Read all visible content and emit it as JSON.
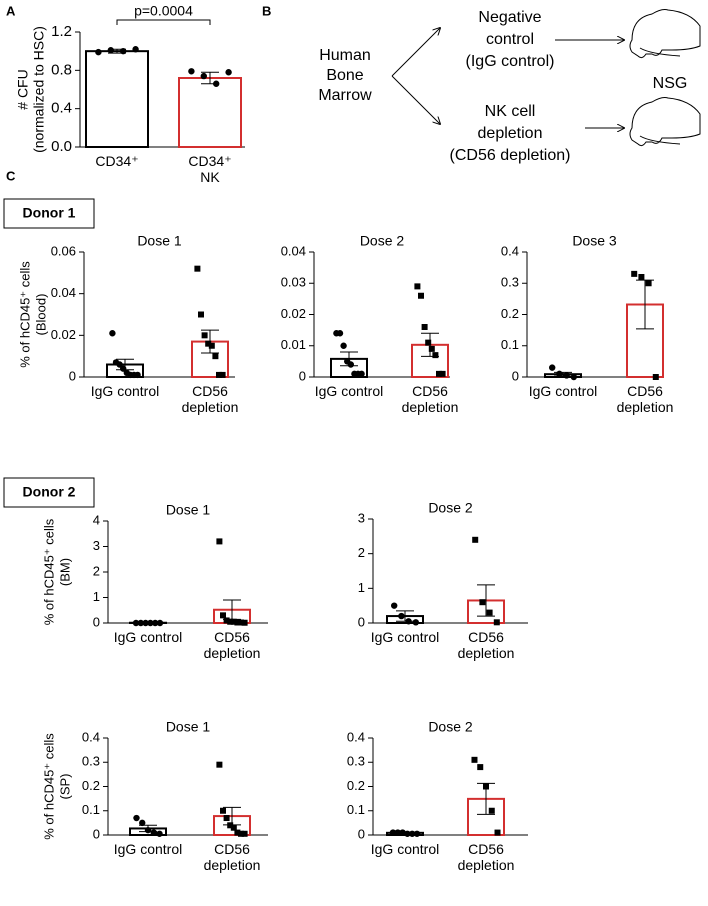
{
  "panels": [
    "A",
    "B",
    "C"
  ],
  "sections": [
    "Donor 1",
    "Donor 2"
  ],
  "diagram": {
    "source": [
      "Human",
      "Bone",
      "Marrow"
    ],
    "arm1": [
      "Negative",
      "control",
      "(IgG control)"
    ],
    "arm2": [
      "NK cell",
      "depletion",
      "(CD56 depletion)"
    ],
    "model": "NSG"
  },
  "chart_data": [
    {
      "type": "bar",
      "annotation": "p=0.0004",
      "ylabel": [
        "# CFU",
        "(normalized to HSC)"
      ],
      "categories": [
        "CD34⁺",
        "CD34⁺ NK"
      ],
      "values": [
        1.0,
        0.72
      ],
      "errors": [
        0.02,
        0.06
      ],
      "points": [
        [
          0.99,
          1.01,
          1.0,
          1.02
        ],
        [
          0.79,
          0.74,
          0.66,
          0.78
        ]
      ],
      "markers": [
        "circle",
        "circle"
      ],
      "colors": [
        "#000000",
        "#d32f2f"
      ],
      "ylim": [
        0,
        1.2
      ],
      "yticks": [
        {
          "value": 0,
          "label": "0.0"
        },
        0.4,
        0.8,
        1.2
      ]
    },
    {
      "type": "bar",
      "title": "Dose 1",
      "ylabel": [
        "% of hCD45⁺ cells",
        "(Blood)"
      ],
      "categories": [
        "IgG control",
        "CD56 depletion"
      ],
      "values": [
        0.006,
        0.017
      ],
      "errors": [
        0.0025,
        0.0055
      ],
      "points": [
        [
          0.021,
          0.007,
          0.006,
          0.004,
          0.002,
          0.001,
          0.001,
          0.001
        ],
        [
          0.052,
          0.03,
          0.02,
          0.016,
          0.015,
          0.01,
          0.001,
          0.001
        ]
      ],
      "markers": [
        "circle",
        "square"
      ],
      "colors": [
        "#000000",
        "#d32f2f"
      ],
      "ylim": [
        0,
        0.06
      ],
      "yticks": [
        0,
        0.02,
        0.04,
        0.06
      ]
    },
    {
      "type": "bar",
      "title": "Dose 2",
      "categories": [
        "IgG control",
        "CD56 depletion"
      ],
      "values": [
        0.0058,
        0.0103
      ],
      "errors": [
        0.0022,
        0.0037
      ],
      "points": [
        [
          0.014,
          0.014,
          0.01,
          0.005,
          0.004,
          0.001,
          0.001,
          0.001
        ],
        [
          0.029,
          0.026,
          0.016,
          0.011,
          0.009,
          0.007,
          0.001,
          0.001
        ]
      ],
      "markers": [
        "circle",
        "square"
      ],
      "colors": [
        "#000000",
        "#d32f2f"
      ],
      "ylim": [
        0,
        0.04
      ],
      "yticks": [
        0,
        0.01,
        0.02,
        0.03,
        0.04
      ]
    },
    {
      "type": "bar",
      "title": "Dose 3",
      "categories": [
        "IgG control",
        "CD56 depletion"
      ],
      "values": [
        0.009,
        0.232
      ],
      "errors": [
        0.006,
        0.078
      ],
      "points": [
        [
          0.03,
          0.01,
          0.005,
          0
        ],
        [
          0.33,
          0.32,
          0.3,
          0
        ]
      ],
      "markers": [
        "circle",
        "square"
      ],
      "colors": [
        "#000000",
        "#d32f2f"
      ],
      "ylim": [
        0,
        0.4
      ],
      "yticks": [
        0,
        0.1,
        0.2,
        0.3,
        0.4
      ]
    },
    {
      "type": "bar",
      "title": "Dose 1",
      "ylabel": [
        "% of hCD45⁺ cells",
        "(BM)"
      ],
      "categories": [
        "IgG control",
        "CD56 depletion"
      ],
      "values": [
        0.01,
        0.52
      ],
      "errors": [
        0.005,
        0.38
      ],
      "points": [
        [
          0,
          0,
          0,
          0,
          0,
          0
        ],
        [
          3.2,
          0.3,
          0.1,
          0.05,
          0.05,
          0.02,
          0.02,
          0.01
        ]
      ],
      "markers": [
        "circle",
        "square"
      ],
      "colors": [
        "#000000",
        "#d32f2f"
      ],
      "ylim": [
        0,
        4
      ],
      "yticks": [
        0,
        1,
        2,
        3,
        4
      ]
    },
    {
      "type": "bar",
      "title": "Dose 2",
      "categories": [
        "IgG control",
        "CD56 depletion"
      ],
      "values": [
        0.2,
        0.65
      ],
      "errors": [
        0.15,
        0.45
      ],
      "points": [
        [
          0.5,
          0.2,
          0.05,
          0.02
        ],
        [
          2.4,
          0.6,
          0.3,
          0.02
        ]
      ],
      "markers": [
        "circle",
        "square"
      ],
      "colors": [
        "#000000",
        "#d32f2f"
      ],
      "ylim": [
        0,
        3
      ],
      "yticks": [
        0,
        1,
        2,
        3
      ]
    },
    {
      "type": "bar",
      "title": "Dose 1",
      "ylabel": [
        "% of hCD45⁺ cells",
        "(SP)"
      ],
      "categories": [
        "IgG control",
        "CD56 depletion"
      ],
      "values": [
        0.027,
        0.078
      ],
      "errors": [
        0.013,
        0.036
      ],
      "points": [
        [
          0.07,
          0.05,
          0.02,
          0.01,
          0.005
        ],
        [
          0.29,
          0.1,
          0.07,
          0.04,
          0.03,
          0.01,
          0.005,
          0.005
        ]
      ],
      "markers": [
        "circle",
        "square"
      ],
      "colors": [
        "#000000",
        "#d32f2f"
      ],
      "ylim": [
        0,
        0.4
      ],
      "yticks": [
        0,
        0.1,
        0.2,
        0.3,
        0.4
      ]
    },
    {
      "type": "bar",
      "title": "Dose 2",
      "categories": [
        "IgG control",
        "CD56 depletion"
      ],
      "values": [
        0.009,
        0.149
      ],
      "errors": [
        0.003,
        0.064
      ],
      "points": [
        [
          0.01,
          0.01,
          0.01,
          0.005,
          0.005,
          0.005
        ],
        [
          0.31,
          0.28,
          0.2,
          0.1,
          0.01
        ]
      ],
      "markers": [
        "circle",
        "square"
      ],
      "colors": [
        "#000000",
        "#d32f2f"
      ],
      "ylim": [
        0,
        0.4
      ],
      "yticks": [
        0,
        0.1,
        0.2,
        0.3,
        0.4
      ]
    }
  ]
}
